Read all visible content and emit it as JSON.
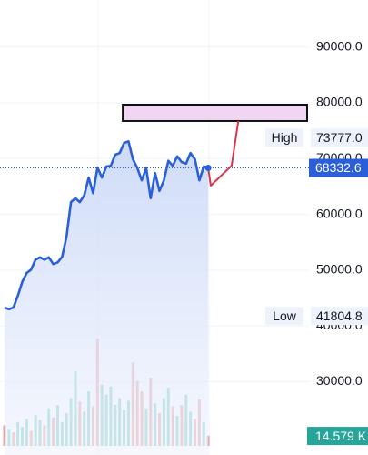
{
  "chart_data": {
    "type": "line",
    "xlim": [
      -1.03,
      82.1
    ],
    "ylim": [
      16870,
      98430
    ],
    "yticks": [
      {
        "value": 30000,
        "label": "30000.0"
      },
      {
        "value": 40000,
        "label": "40000.0"
      },
      {
        "value": 50000,
        "label": "50000.0"
      },
      {
        "value": 60000,
        "label": "60000.0"
      },
      {
        "value": 70000,
        "label": "70000.0"
      },
      {
        "value": 80000,
        "label": "80000.0"
      },
      {
        "value": 90000,
        "label": "90000.0"
      }
    ],
    "grid": true,
    "series": [
      {
        "color": "#2b5fd9",
        "fill": true,
        "x": [
          0,
          1,
          2,
          3,
          4,
          5,
          6,
          7,
          8,
          9,
          10,
          11,
          12,
          13,
          14,
          15,
          16,
          17,
          18,
          19,
          20,
          21,
          22,
          23,
          24,
          25,
          26,
          27,
          28,
          29,
          30,
          31,
          32,
          33,
          34,
          35,
          36,
          37,
          38,
          39,
          40,
          41,
          42,
          43,
          44,
          45,
          46
        ],
        "values": [
          43300,
          43000,
          43300,
          45400,
          47900,
          49500,
          50100,
          51900,
          52300,
          51900,
          52300,
          51100,
          51400,
          52400,
          56000,
          62200,
          62900,
          62200,
          63400,
          66600,
          63800,
          68400,
          66600,
          68600,
          68700,
          70700,
          71000,
          72800,
          73100,
          69900,
          68300,
          66100,
          68300,
          62900,
          67400,
          64200,
          66100,
          69600,
          68700,
          70400,
          69400,
          69100,
          71000,
          69900,
          66100,
          68600,
          68332.6
        ]
      },
      {
        "color": "#d9344a",
        "fill": false,
        "x": [
          46,
          46.6,
          51.3,
          52.8
        ],
        "values": [
          68332.6,
          65160,
          68740,
          76740
        ]
      }
    ],
    "zone": {
      "from": 76740,
      "to": 79670,
      "x_start": 26.7,
      "fill": "#f0d6f2",
      "stroke": "#111111"
    },
    "high": {
      "label": "High",
      "value": 73777,
      "value_label": "73777.0"
    },
    "low": {
      "label": "Low",
      "value": 41804.8
    },
    "volume": {
      "ylim": [
        0,
        160
      ],
      "values": [
        30,
        25,
        20,
        35,
        28,
        40,
        22,
        45,
        38,
        30,
        55,
        42,
        60,
        35,
        48,
        70,
        109,
        65,
        50,
        80,
        58,
        157,
        90,
        75,
        87,
        60,
        70,
        52,
        66,
        122,
        95,
        80,
        55,
        100,
        62,
        48,
        70,
        85,
        58,
        44,
        60,
        75,
        50,
        40,
        68,
        35,
        14.579
      ],
      "colors": [
        "#eaa3a3",
        "#86cfc5",
        "#eaa3a3",
        "#86cfc5",
        "#86cfc5",
        "#86cfc5",
        "#eaa3a3",
        "#86cfc5",
        "#86cfc5",
        "#eaa3a3",
        "#86cfc5",
        "#eaa3a3",
        "#86cfc5",
        "#86cfc5",
        "#86cfc5",
        "#86cfc5",
        "#86cfc5",
        "#eaa3a3",
        "#86cfc5",
        "#86cfc5",
        "#eaa3a3",
        "#eaa3a3",
        "#86cfc5",
        "#86cfc5",
        "#86cfc5",
        "#86cfc5",
        "#86cfc5",
        "#86cfc5",
        "#86cfc5",
        "#eaa3a3",
        "#eaa3a3",
        "#eaa3a3",
        "#86cfc5",
        "#eaa3a3",
        "#86cfc5",
        "#eaa3a3",
        "#86cfc5",
        "#86cfc5",
        "#eaa3a3",
        "#86cfc5",
        "#eaa3a3",
        "#86cfc5",
        "#86cfc5",
        "#eaa3a3",
        "#eaa3a3",
        "#86cfc5",
        "#eaa3a3"
      ],
      "tag": {
        "value": 14.579,
        "label": "14.579 K",
        "color": "#26a69a"
      }
    }
  }
}
